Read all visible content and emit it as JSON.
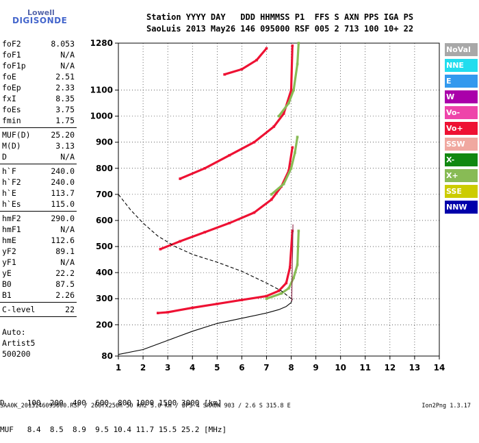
{
  "logo": {
    "word": "Lowell",
    "brand": "DIGISONDE"
  },
  "header": {
    "row1": "Station YYYY DAY   DDD HHMMSS P1  FFS S AXN PPS IGA PS",
    "row2": "SaoLuis 2013 May26 146 095000 RSF 005 2 713 100 10+ 22"
  },
  "params_groups": [
    [
      {
        "label": "foF2",
        "value": "8.053"
      },
      {
        "label": "foF1",
        "value": "N/A"
      },
      {
        "label": "foF1p",
        "value": "N/A"
      },
      {
        "label": "foE",
        "value": "2.51"
      },
      {
        "label": "foEp",
        "value": "2.33"
      },
      {
        "label": "fxI",
        "value": "8.35"
      },
      {
        "label": "foEs",
        "value": "3.75"
      },
      {
        "label": "fmin",
        "value": "1.75"
      }
    ],
    [
      {
        "label": "MUF(D)",
        "value": "25.20"
      },
      {
        "label": "M(D)",
        "value": "3.13"
      },
      {
        "label": "D",
        "value": "N/A"
      }
    ],
    [
      {
        "label": "h`F",
        "value": "240.0"
      },
      {
        "label": "h`F2",
        "value": "240.0"
      },
      {
        "label": "h`E",
        "value": "113.7"
      },
      {
        "label": "h`Es",
        "value": "115.0"
      }
    ],
    [
      {
        "label": "hmF2",
        "value": "290.0"
      },
      {
        "label": "hmF1",
        "value": "N/A"
      },
      {
        "label": "hmE",
        "value": "112.6"
      },
      {
        "label": "yF2",
        "value": "89.1"
      },
      {
        "label": "yF1",
        "value": "N/A"
      },
      {
        "label": "yE",
        "value": "22.2"
      },
      {
        "label": "B0",
        "value": "87.5"
      },
      {
        "label": "B1",
        "value": "2.26"
      }
    ],
    [
      {
        "label": "C-level",
        "value": "22"
      }
    ]
  ],
  "auto": {
    "line1": "Auto:",
    "line2": "Artist5",
    "line3": "500200"
  },
  "legend": [
    {
      "label": "NoVal",
      "color": "#a8a8a8"
    },
    {
      "label": "NNE",
      "color": "#22ddee"
    },
    {
      "label": "E",
      "color": "#3399ee"
    },
    {
      "label": "W",
      "color": "#aa00aa"
    },
    {
      "label": "Vo-",
      "color": "#ee44aa"
    },
    {
      "label": "Vo+",
      "color": "#ee1133"
    },
    {
      "label": "SSW",
      "color": "#f0a8a0"
    },
    {
      "label": "X-",
      "color": "#118811"
    },
    {
      "label": "X+",
      "color": "#88bb55"
    },
    {
      "label": "SSE",
      "color": "#cccc00"
    },
    {
      "label": "NNW",
      "color": "#0000aa"
    }
  ],
  "muf_table": {
    "row1": "D     100  200  400  600  800 1000 1500 3000 [km]",
    "row2": "MUF   8.4  8.5  8.9  9.5 10.4 11.7 15.5 25.2 [MHz]"
  },
  "footer": {
    "left": "SAA0K_2013146095000.RSF / 260fx256h 50 kHz 5.0 km / DPS-4 SAA0K 903 / 2.6 S 315.8 E",
    "right": "Ion2Png 1.3.17"
  },
  "chart_data": {
    "type": "scatter",
    "title": "",
    "xlabel": "",
    "ylabel": "",
    "xlim": [
      1,
      14
    ],
    "ylim": [
      80,
      1280
    ],
    "x_ticks": [
      "1",
      "2",
      "3",
      "4",
      "5",
      "6",
      "7",
      "8",
      "9",
      "10",
      "11",
      "12",
      "13",
      "14"
    ],
    "y_ticks": [
      "80",
      "200",
      "300",
      "400",
      "500",
      "600",
      "700",
      "800",
      "900",
      "1000",
      "1100",
      "1280"
    ],
    "series": [
      {
        "color": "#ee1133",
        "style": "trace",
        "points": [
          [
            2.6,
            245
          ],
          [
            3.0,
            248
          ],
          [
            4.0,
            265
          ],
          [
            5.0,
            280
          ],
          [
            6.0,
            295
          ],
          [
            7.0,
            310
          ],
          [
            7.5,
            330
          ],
          [
            7.8,
            360
          ],
          [
            7.95,
            420
          ],
          [
            8.05,
            560
          ]
        ]
      },
      {
        "color": "#ee1133",
        "style": "trace",
        "points": [
          [
            2.7,
            490
          ],
          [
            3.5,
            520
          ],
          [
            4.5,
            555
          ],
          [
            5.5,
            590
          ],
          [
            6.5,
            630
          ],
          [
            7.2,
            680
          ],
          [
            7.6,
            730
          ],
          [
            7.9,
            790
          ],
          [
            8.05,
            880
          ]
        ]
      },
      {
        "color": "#ee1133",
        "style": "trace",
        "points": [
          [
            3.5,
            760
          ],
          [
            4.5,
            800
          ],
          [
            5.5,
            850
          ],
          [
            6.5,
            900
          ],
          [
            7.3,
            960
          ],
          [
            7.7,
            1010
          ],
          [
            8.0,
            1100
          ],
          [
            8.05,
            1270
          ]
        ]
      },
      {
        "color": "#ee1133",
        "style": "trace",
        "points": [
          [
            5.3,
            1160
          ],
          [
            6.0,
            1180
          ],
          [
            6.6,
            1215
          ],
          [
            7.0,
            1260
          ]
        ]
      },
      {
        "color": "#88bb55",
        "style": "trace",
        "points": [
          [
            7.0,
            300
          ],
          [
            7.6,
            320
          ],
          [
            7.9,
            340
          ],
          [
            8.1,
            380
          ],
          [
            8.25,
            430
          ],
          [
            8.3,
            560
          ]
        ]
      },
      {
        "color": "#88bb55",
        "style": "trace",
        "points": [
          [
            7.2,
            700
          ],
          [
            7.7,
            740
          ],
          [
            8.0,
            800
          ],
          [
            8.15,
            860
          ],
          [
            8.25,
            920
          ]
        ]
      },
      {
        "color": "#88bb55",
        "style": "trace",
        "points": [
          [
            7.5,
            1000
          ],
          [
            7.9,
            1050
          ],
          [
            8.1,
            1100
          ],
          [
            8.25,
            1200
          ],
          [
            8.3,
            1280
          ]
        ]
      },
      {
        "color": "#000000",
        "style": "solid",
        "points": [
          [
            1.0,
            86
          ],
          [
            2.0,
            105
          ],
          [
            3.0,
            140
          ],
          [
            4.0,
            175
          ],
          [
            5.0,
            205
          ],
          [
            6.0,
            225
          ],
          [
            7.0,
            245
          ],
          [
            7.5,
            258
          ],
          [
            7.8,
            270
          ],
          [
            8.0,
            285
          ],
          [
            8.05,
            300
          ]
        ]
      },
      {
        "color": "#000000",
        "style": "dashed",
        "points": [
          [
            1.0,
            700
          ],
          [
            1.5,
            640
          ],
          [
            2.0,
            590
          ],
          [
            2.6,
            540
          ],
          [
            3.3,
            500
          ],
          [
            4.0,
            470
          ],
          [
            5.0,
            440
          ],
          [
            6.0,
            405
          ],
          [
            7.0,
            360
          ],
          [
            7.6,
            330
          ],
          [
            8.0,
            300
          ]
        ]
      },
      {
        "color": "#882244",
        "style": "solid",
        "points": [
          [
            8.02,
            290
          ],
          [
            8.04,
            400
          ],
          [
            8.06,
            500
          ],
          [
            8.07,
            585
          ]
        ]
      }
    ]
  }
}
